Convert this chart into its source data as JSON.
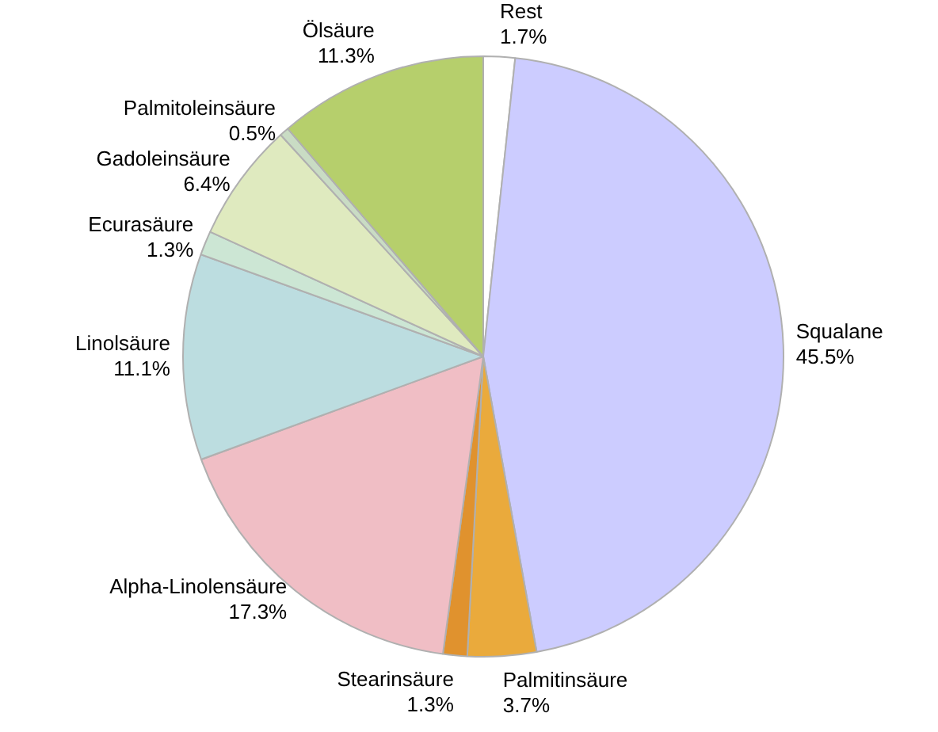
{
  "chart_data": {
    "type": "pie",
    "categories": [
      "Rest",
      "Squalane",
      "Palmitinsäure",
      "Stearinsäure",
      "Alpha-Linolensäure",
      "Linolsäure",
      "Ecurasäure",
      "Gadoleinsäure",
      "Palmitoleinsäure",
      "Ölsäure"
    ],
    "values": [
      1.7,
      45.5,
      3.7,
      1.3,
      17.3,
      11.1,
      1.3,
      6.4,
      0.5,
      11.3
    ],
    "value_labels": [
      "1.7%",
      "45.5%",
      "3.7%",
      "1.3%",
      "17.3%",
      "11.1%",
      "1.3%",
      "6.4%",
      "0.5%",
      "11.3%"
    ],
    "colors": [
      "#ffffff",
      "#ccccff",
      "#eaaa3c",
      "#e0922e",
      "#f0bec5",
      "#bcdde0",
      "#cce6d4",
      "#dfeabf",
      "#c9dcc4",
      "#b6cf6c"
    ],
    "legend": false
  }
}
